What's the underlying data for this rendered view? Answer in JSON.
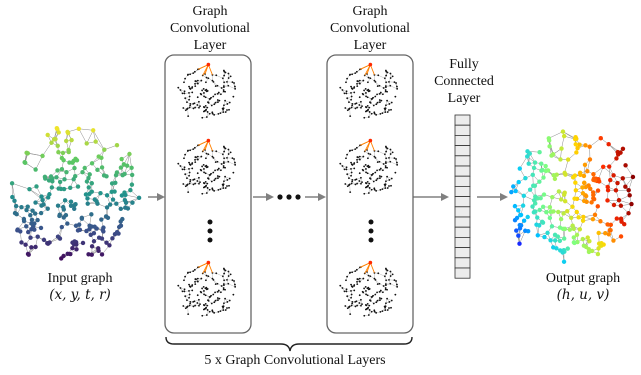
{
  "gcl_label_1": [
    "Graph",
    "Convolutional",
    "Layer"
  ],
  "gcl_label_2": [
    "Graph",
    "Convolutional",
    "Layer"
  ],
  "fc_label": [
    "Fully",
    "Connected",
    "Layer"
  ],
  "input_label": "Input graph",
  "input_vars": "(x, y, t, r)",
  "output_label": "Output graph",
  "output_vars": "(h, u, v)",
  "brace_label": "5 x Graph Convolutional Layers",
  "colors": {
    "input_palette": [
      "#440154",
      "#3b528b",
      "#21918c",
      "#5ec962",
      "#fde725"
    ],
    "output_palette": [
      "#1a1aff",
      "#00c8ff",
      "#7fff7f",
      "#ffd700",
      "#ff2a00",
      "#8b0000"
    ],
    "highlight": "#ff8000",
    "arrow": "#808080"
  }
}
